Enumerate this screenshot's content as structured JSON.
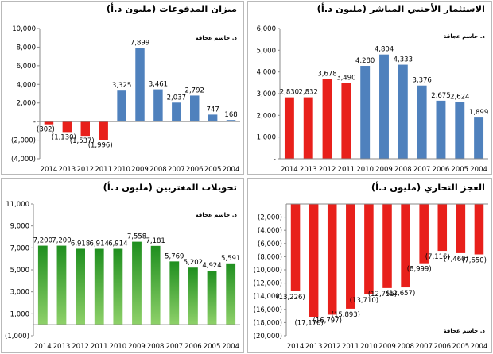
{
  "source_note": "د. جاسم عجاقة",
  "chart_data": [
    {
      "id": "tl",
      "type": "bar",
      "title": "ميزان المدفوعات (مليون د.أ)",
      "categories": [
        "2014",
        "2013",
        "2012",
        "2011",
        "2010",
        "2009",
        "2008",
        "2007",
        "2006",
        "2005",
        "2004"
      ],
      "values": [
        -302,
        -1130,
        -1537,
        -1996,
        3325,
        7899,
        3461,
        2037,
        2792,
        747,
        168
      ],
      "labels": [
        "(302)",
        "(1,130)",
        "(1,537)",
        "(1,996)",
        "3,325",
        "7,899",
        "3,461",
        "2,037",
        "2,792",
        "747",
        "168"
      ],
      "ylim": [
        -4000,
        10000
      ],
      "yticks": [
        10000,
        8000,
        6000,
        4000,
        2000,
        0,
        -2000,
        -4000
      ],
      "ytick_labels": [
        "10,000",
        "8,000",
        "6,000",
        "4,000",
        "2,000",
        "-",
        "(2,000)",
        "(4,000)"
      ],
      "colors": [
        "#e8201b",
        "#e8201b",
        "#e8201b",
        "#e8201b",
        "#4f81bd",
        "#4f81bd",
        "#4f81bd",
        "#4f81bd",
        "#4f81bd",
        "#4f81bd",
        "#4f81bd"
      ]
    },
    {
      "id": "tr",
      "type": "bar",
      "title": "الاستثمار الأجنبي المباشر (مليون د.أ)",
      "categories": [
        "2014",
        "2013",
        "2012",
        "2011",
        "2010",
        "2009",
        "2008",
        "2007",
        "2006",
        "2005",
        "2004"
      ],
      "values": [
        2830,
        2832,
        3678,
        3490,
        4280,
        4804,
        4333,
        3376,
        2675,
        2624,
        1899
      ],
      "labels": [
        "2,830",
        "2,832",
        "3,678",
        "3,490",
        "4,280",
        "4,804",
        "4,333",
        "3,376",
        "2,675",
        "2,624",
        "1,899"
      ],
      "ylim": [
        0,
        6000
      ],
      "yticks": [
        6000,
        5000,
        4000,
        3000,
        2000,
        1000,
        0
      ],
      "ytick_labels": [
        "6,000",
        "5,000",
        "4,000",
        "3,000",
        "2,000",
        "1,000",
        "-"
      ],
      "colors": [
        "#e8201b",
        "#e8201b",
        "#e8201b",
        "#e8201b",
        "#4f81bd",
        "#4f81bd",
        "#4f81bd",
        "#4f81bd",
        "#4f81bd",
        "#4f81bd",
        "#4f81bd"
      ]
    },
    {
      "id": "bl",
      "type": "bar",
      "title": "تحويلات المغتربين (مليون د.أ)",
      "categories": [
        "2014",
        "2013",
        "2012",
        "2011",
        "2010",
        "2009",
        "2008",
        "2007",
        "2006",
        "2005",
        "2004"
      ],
      "values": [
        7200,
        7200,
        6918,
        6914,
        6914,
        7558,
        7181,
        5769,
        5202,
        4924,
        5591
      ],
      "labels": [
        "7,200",
        "7,200",
        "6,918",
        "6,914",
        "6,914",
        "7,558",
        "7,181",
        "5,769",
        "5,202",
        "4,924",
        "5,591"
      ],
      "ylim": [
        -1000,
        11000
      ],
      "yticks": [
        11000,
        9000,
        7000,
        5000,
        3000,
        1000,
        -1000
      ],
      "ytick_labels": [
        "11,000",
        "9,000",
        "7,000",
        "5,000",
        "3,000",
        "1,000",
        "(1,000)"
      ],
      "colors": [
        "#2e9e2e",
        "#2e9e2e",
        "#2e9e2e",
        "#2e9e2e",
        "#2e9e2e",
        "#2e9e2e",
        "#2e9e2e",
        "#2e9e2e",
        "#2e9e2e",
        "#2e9e2e",
        "#2e9e2e"
      ]
    },
    {
      "id": "br",
      "type": "bar",
      "title": "العجز التجاري (مليون د.أ)",
      "categories": [
        "2014",
        "2013",
        "2012",
        "2011",
        "2010",
        "2009",
        "2008",
        "2007",
        "2006",
        "2005",
        "2004"
      ],
      "values": [
        -13226,
        -17170,
        -16797,
        -15893,
        -13710,
        -12755,
        -12657,
        -8999,
        -7116,
        -7460,
        -7650
      ],
      "labels": [
        "(13,226)",
        "(17,170)",
        "(16,797)",
        "(15,893)",
        "(13,710)",
        "(12,755)",
        "(12,657)",
        "(8,999)",
        "(7,116)",
        "(7,460)",
        "(7,650)"
      ],
      "ylim": [
        -20000,
        0
      ],
      "yticks": [
        -2000,
        -4000,
        -6000,
        -8000,
        -10000,
        -12000,
        -14000,
        -16000,
        -18000,
        -20000
      ],
      "ytick_labels": [
        "(2,000)",
        "(4,000)",
        "(6,000)",
        "(8,000)",
        "(10,000)",
        "(12,000)",
        "(14,000)",
        "(16,000)",
        "(18,000)",
        "(20,000)"
      ],
      "colors": [
        "#e8201b",
        "#e8201b",
        "#e8201b",
        "#e8201b",
        "#e8201b",
        "#e8201b",
        "#e8201b",
        "#e8201b",
        "#e8201b",
        "#e8201b",
        "#e8201b"
      ]
    }
  ]
}
